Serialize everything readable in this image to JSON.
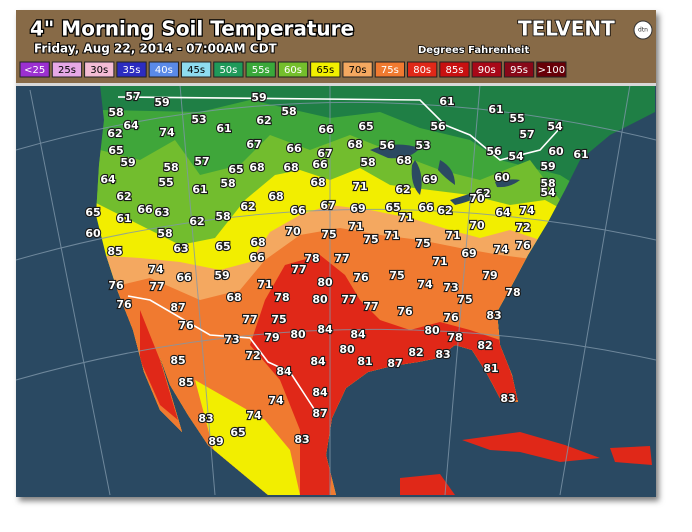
{
  "header": {
    "title": "4\" Morning Soil Temperature",
    "subtitle": "Friday, Aug 22, 2014 - 07:00AM CDT",
    "units": "Degrees Fahrenheit",
    "logo": "TELVENT",
    "logo_badge": "dtn"
  },
  "legend": [
    {
      "label": "<25",
      "color": "#9b30d0"
    },
    {
      "label": "25s",
      "color": "#e6a8e6"
    },
    {
      "label": "30s",
      "color": "#f4bcd4"
    },
    {
      "label": "35s",
      "color": "#2c2cc0"
    },
    {
      "label": "40s",
      "color": "#5a8ae8"
    },
    {
      "label": "45s",
      "color": "#8edcf0"
    },
    {
      "label": "50s",
      "color": "#1f9a5a"
    },
    {
      "label": "55s",
      "color": "#3aa83a"
    },
    {
      "label": "60s",
      "color": "#74bf2c"
    },
    {
      "label": "65s",
      "color": "#f2f000"
    },
    {
      "label": "70s",
      "color": "#f4a860"
    },
    {
      "label": "75s",
      "color": "#f07a30"
    },
    {
      "label": "80s",
      "color": "#e02818"
    },
    {
      "label": "85s",
      "color": "#c81010"
    },
    {
      "label": "90s",
      "color": "#a80818"
    },
    {
      "label": "95s",
      "color": "#880818"
    },
    {
      "label": ">100",
      "color": "#680008"
    }
  ],
  "stations": [
    57,
    59,
    59,
    61,
    61,
    55,
    54,
    58,
    64,
    62,
    74,
    53,
    61,
    62,
    58,
    66,
    65,
    56,
    57,
    60,
    61,
    65,
    59,
    58,
    57,
    67,
    66,
    67,
    68,
    56,
    53,
    56,
    54,
    65,
    68,
    68,
    66,
    58,
    68,
    59,
    64,
    55,
    58,
    61,
    68,
    71,
    62,
    69,
    60,
    58,
    62,
    68,
    62,
    54,
    65,
    61,
    66,
    63,
    62,
    58,
    62,
    66,
    67,
    69,
    65,
    71,
    66,
    62,
    70,
    64,
    74,
    60,
    58,
    70,
    75,
    71,
    75,
    71,
    75,
    71,
    70,
    72,
    85,
    63,
    65,
    68,
    66,
    77,
    78,
    77,
    76,
    75,
    71,
    69,
    74,
    76,
    74,
    76,
    77,
    66,
    59,
    71,
    80,
    79,
    74,
    73,
    78,
    76,
    87,
    68,
    78,
    80,
    77,
    77,
    76,
    75,
    76,
    77,
    75,
    76,
    83,
    73,
    79,
    80,
    84,
    84,
    80,
    78,
    80,
    82,
    81,
    85,
    72,
    84,
    87,
    82,
    83,
    85,
    84,
    81,
    84,
    74,
    83,
    74,
    87,
    83,
    65,
    89,
    83
  ]
}
